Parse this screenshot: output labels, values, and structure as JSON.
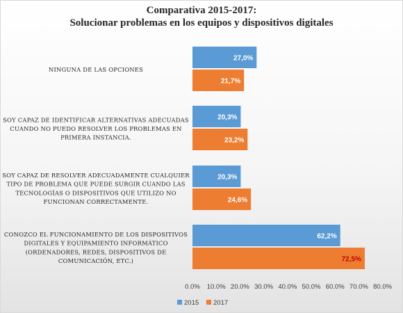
{
  "chart_data": {
    "type": "bar",
    "orientation": "horizontal",
    "title": "Comparativa 2015-2017:",
    "subtitle": "Solucionar problemas en los equipos y dispositivos digitales",
    "categories": [
      [
        "NINGUNA DE LAS OPCIONES"
      ],
      [
        "SOY CAPAZ DE IDENTIFICAR ALTERNATIVAS ADECUADAS",
        "CUANDO NO PUEDO RESOLVER LOS PROBLEMAS EN",
        "PRIMERA INSTANCIA."
      ],
      [
        "SOY CAPAZ DE RESOLVER ADECUADAMENTE CUALQUIER",
        "TIPO DE PROBLEMA QUE PUEDE SURGIR CUANDO LAS",
        "TECNOLOGÍAS O DISPOSITIVOS QUE UTILIZO NO",
        "FUNCIONAN CORRECTAMENTE."
      ],
      [
        "CONOZCO EL FUNCIONAMIENTO DE LOS DISPOSITIVOS",
        "DIGITALES Y EQUIPAMIENTO INFORMÁTICO",
        "(ORDENADORES, REDES, DISPOSITIVOS DE",
        "COMUNICACIÓN, ETC.)"
      ]
    ],
    "series": [
      {
        "name": "2015",
        "color": "#5b9bd5",
        "values": [
          27.0,
          20.3,
          20.3,
          62.2
        ],
        "labels": [
          "27,0%",
          "20,3%",
          "20,3%",
          "62,2%"
        ],
        "label_colors": [
          "#ffffff",
          "#ffffff",
          "#ffffff",
          "#ffffff"
        ]
      },
      {
        "name": "2017",
        "color": "#ed7d31",
        "values": [
          21.7,
          23.2,
          24.6,
          72.5
        ],
        "labels": [
          "21,7%",
          "23,2%",
          "24,6%",
          "72,5%"
        ],
        "label_colors": [
          "#ffffff",
          "#ffffff",
          "#ffffff",
          "#c00000"
        ]
      }
    ],
    "xlim": [
      0,
      80
    ],
    "x_ticks": [
      "0.0%",
      "10.0%",
      "20.0%",
      "30.0%",
      "40.0%",
      "50.0%",
      "60.0%",
      "70.0%",
      "80.0%"
    ],
    "grid": false,
    "legend_position": "bottom-left"
  }
}
